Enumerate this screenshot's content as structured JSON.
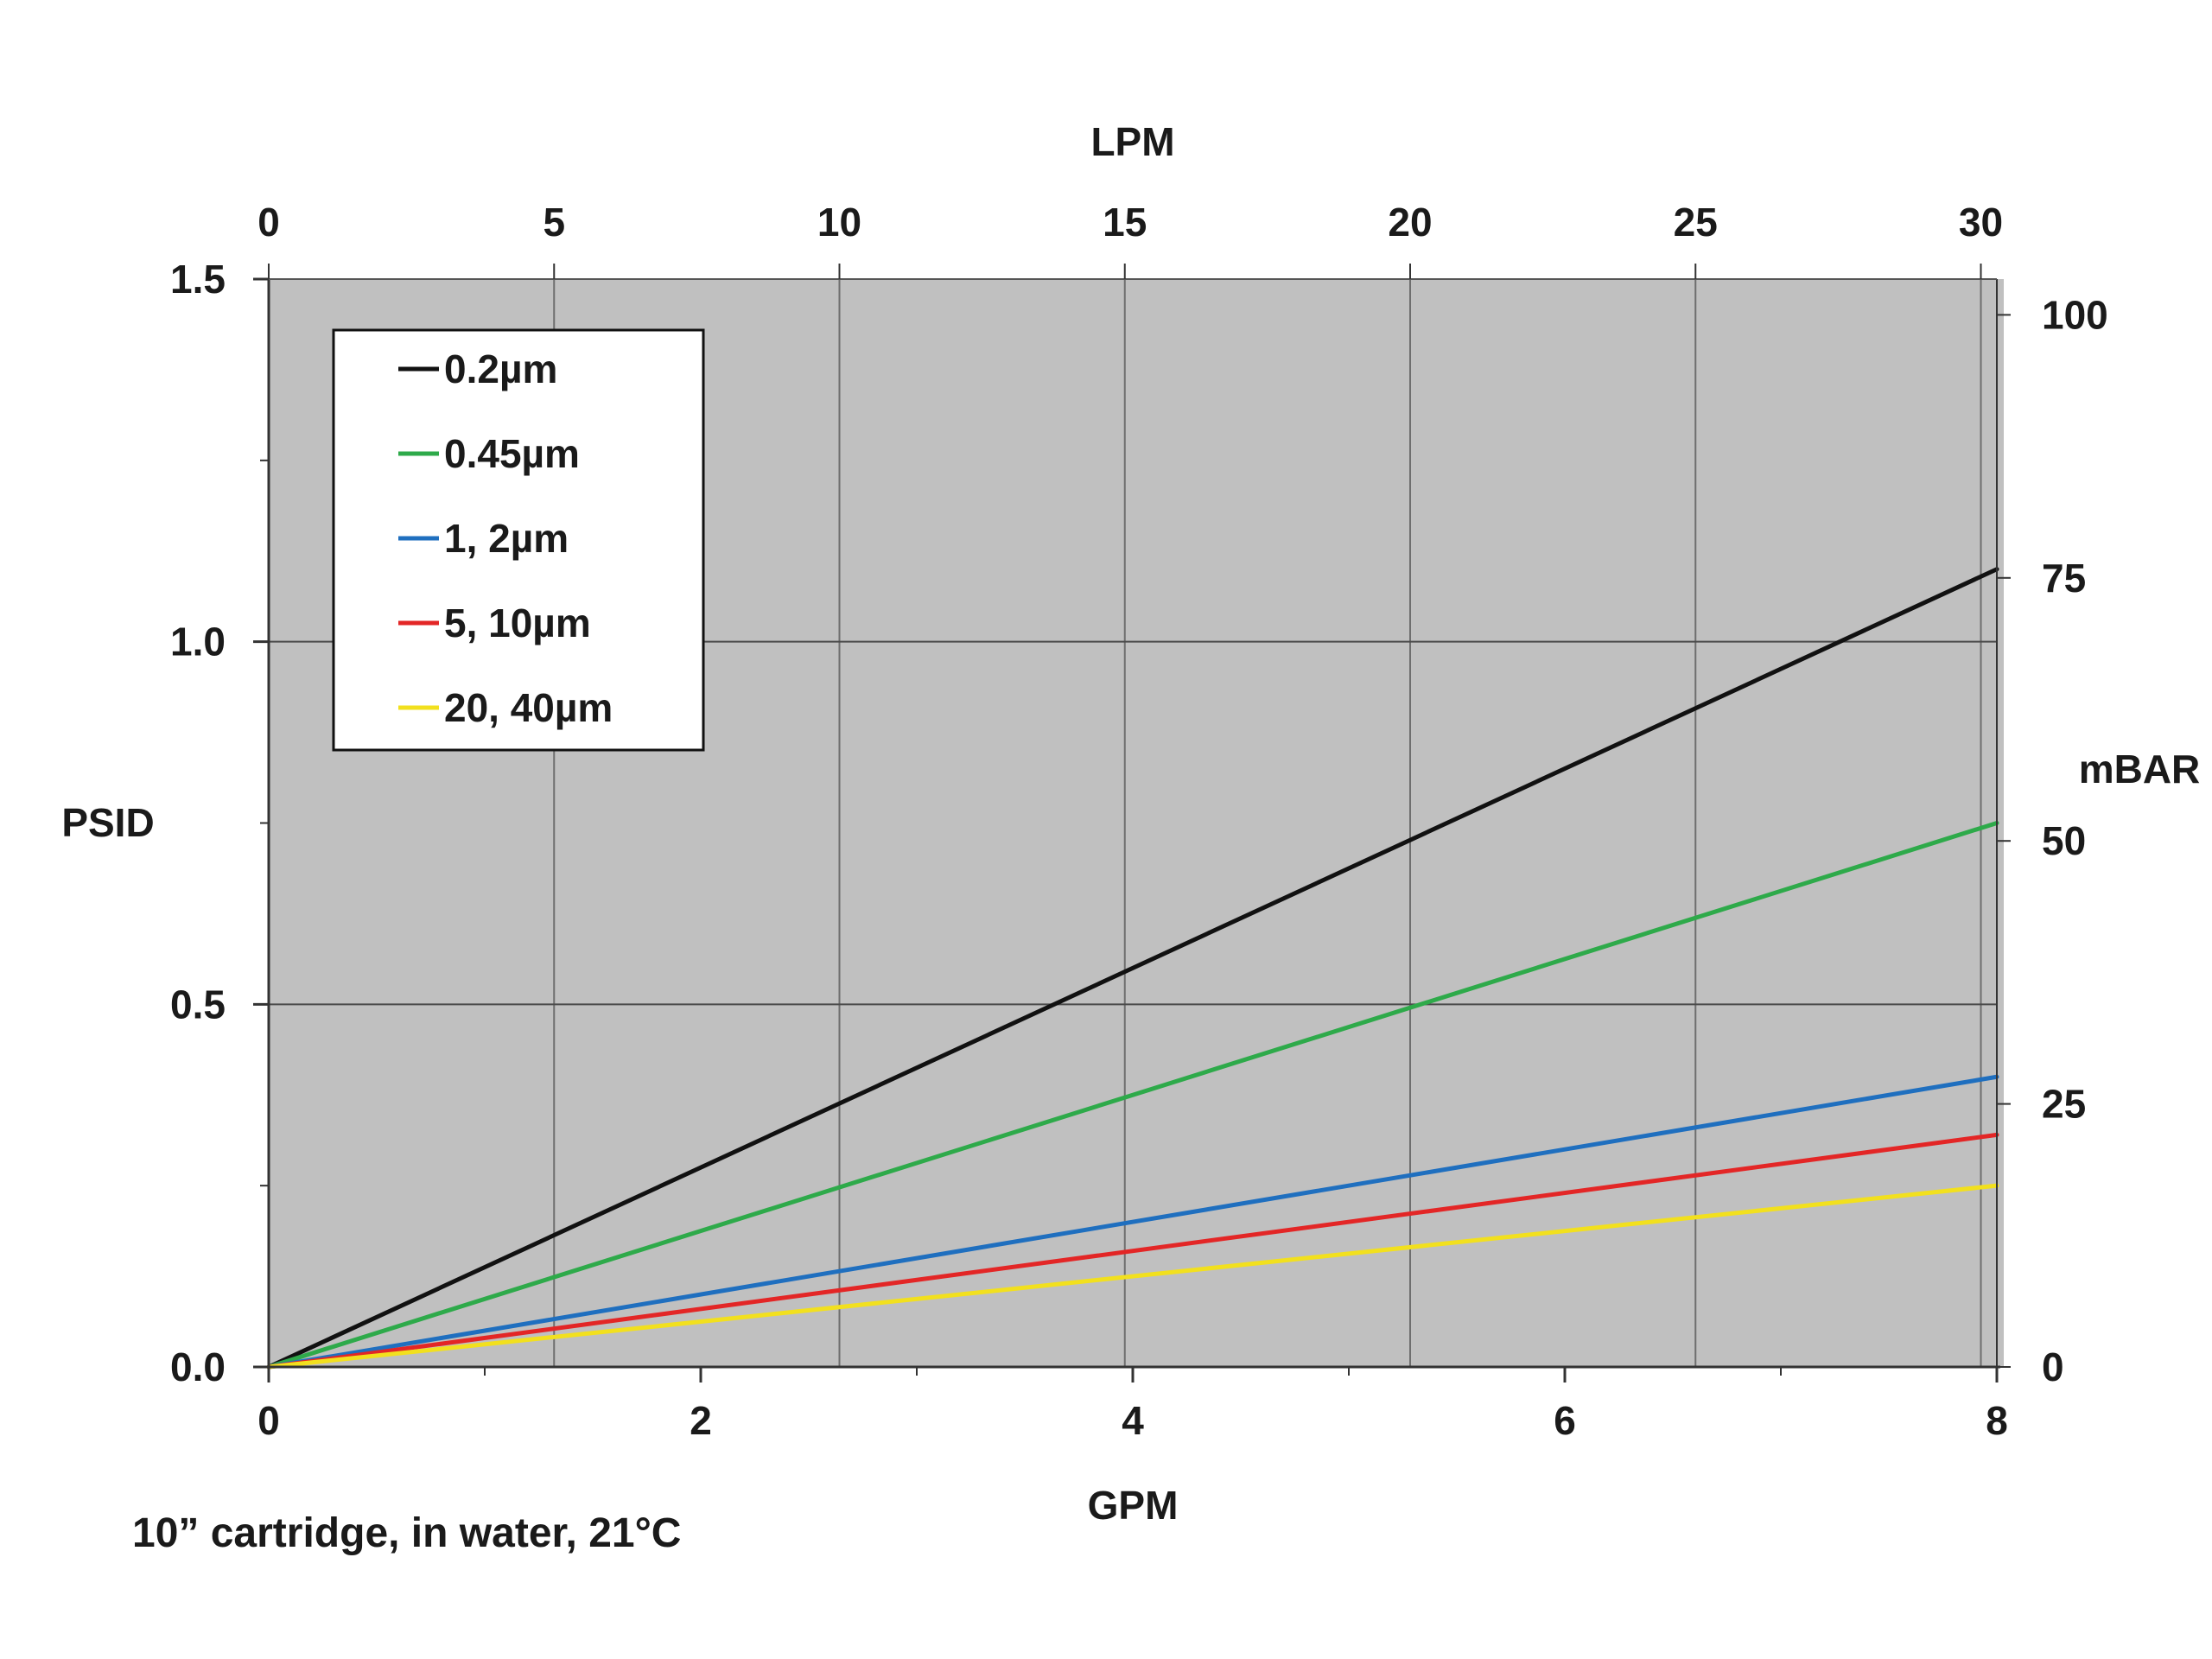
{
  "chart_data": {
    "type": "line",
    "xlabel": "GPM",
    "x2label": "LPM",
    "ylabel": "PSID",
    "y2label": "mBAR",
    "note": "10” cartridge, in water, 21°C",
    "xlim": [
      0,
      8
    ],
    "ylim": [
      0,
      1.5
    ],
    "x2lim": [
      0,
      30.28
    ],
    "y2lim": [
      0,
      103.4
    ],
    "x_ticks": [
      0,
      2,
      4,
      6,
      8
    ],
    "x_tick_labels": [
      "0",
      "2",
      "4",
      "6",
      "8"
    ],
    "x_minor_ticks": [
      1,
      3,
      5,
      7
    ],
    "x2_ticks": [
      0,
      5,
      10,
      15,
      20,
      25,
      30
    ],
    "x2_tick_labels": [
      "0",
      "5",
      "10",
      "15",
      "20",
      "25",
      "30"
    ],
    "y_ticks": [
      0,
      0.5,
      1.0,
      1.5
    ],
    "y_tick_labels": [
      "0.0",
      "0.5",
      "1.0",
      "1.5"
    ],
    "y_minor_ticks": [
      0.25,
      0.75,
      1.25
    ],
    "y2_ticks": [
      0,
      25,
      50,
      75,
      100
    ],
    "y2_tick_labels": [
      "0",
      "25",
      "50",
      "75",
      "100"
    ],
    "grid": true,
    "background": "#c0c0c0",
    "legend_position": "top-left",
    "series": [
      {
        "name": "0.2µm",
        "color": "#111111",
        "x": [
          0,
          8
        ],
        "values": [
          0,
          1.1
        ]
      },
      {
        "name": "0.45µm",
        "color": "#2eaa4a",
        "x": [
          0,
          8
        ],
        "values": [
          0,
          0.75
        ]
      },
      {
        "name": "1, 2µm",
        "color": "#1f6fbf",
        "x": [
          0,
          8
        ],
        "values": [
          0,
          0.4
        ]
      },
      {
        "name": "5, 10µm",
        "color": "#e32626",
        "x": [
          0,
          8
        ],
        "values": [
          0,
          0.32
        ]
      },
      {
        "name": "20, 40µm",
        "color": "#f2e01e",
        "x": [
          0,
          8
        ],
        "values": [
          0,
          0.25
        ]
      }
    ]
  }
}
